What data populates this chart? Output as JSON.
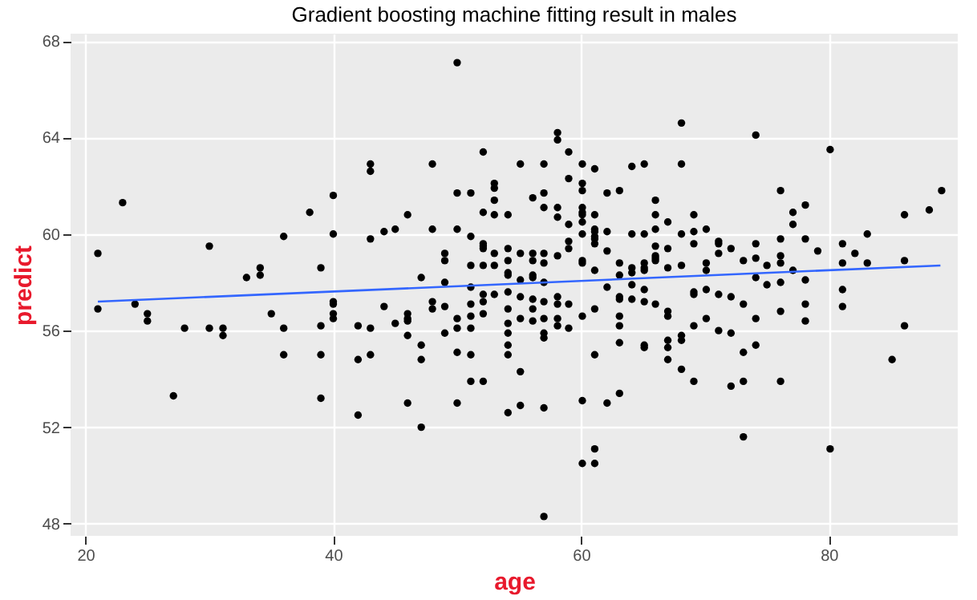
{
  "chart_data": {
    "type": "scatter",
    "title": "Gradient boosting machine fitting result in males",
    "xlabel": "age",
    "ylabel": "predict",
    "xlim": [
      18.8,
      90.4
    ],
    "ylim": [
      47.5,
      68.3
    ],
    "xticks": [
      20,
      40,
      60,
      80
    ],
    "yticks": [
      48,
      52,
      56,
      60,
      64,
      68
    ],
    "grid": true,
    "series": [
      {
        "marker": "circle",
        "color": "#000000",
        "x": [
          21,
          21,
          23,
          24,
          25,
          25,
          27.1,
          28,
          30,
          30,
          31.1,
          31.1,
          33,
          34.1,
          34.1,
          35,
          36,
          36,
          36,
          38.1,
          39,
          39,
          39,
          39,
          40,
          40,
          40,
          40,
          40,
          40,
          42,
          42,
          42,
          43,
          43,
          43,
          43,
          43,
          44.1,
          44.1,
          45,
          45,
          46,
          46,
          46,
          46,
          46,
          46,
          47.1,
          47.1,
          47.1,
          47.1,
          48,
          48,
          48,
          48,
          49,
          49,
          49,
          49,
          49,
          50,
          50,
          50,
          50,
          50,
          50,
          50,
          51.1,
          51.1,
          51.1,
          51.1,
          51.1,
          51.1,
          51.1,
          51.1,
          51.1,
          52.1,
          52.1,
          52.1,
          52.1,
          52.1,
          52.1,
          52.1,
          52.1,
          52.1,
          52.1,
          53,
          53,
          53,
          53,
          53,
          53,
          53,
          54.1,
          54.1,
          54.1,
          54.1,
          54.1,
          54.1,
          54.1,
          54.1,
          54.1,
          54.1,
          54.1,
          54.1,
          55.1,
          55.1,
          55.1,
          55.1,
          55.1,
          55.1,
          55.1,
          56.1,
          56.1,
          56.1,
          56.1,
          56.1,
          56.1,
          56.1,
          56.1,
          57,
          57,
          57,
          57,
          57,
          57,
          57,
          57,
          57,
          57,
          57,
          57,
          58.1,
          58.1,
          58.1,
          58.1,
          58.1,
          58.1,
          58.1,
          58.1,
          58.1,
          59,
          59,
          59,
          59,
          59,
          59,
          59,
          60.1,
          60.1,
          60.1,
          60.1,
          60.1,
          60.1,
          60.1,
          60.1,
          60.1,
          60.1,
          60.1,
          60.1,
          60.1,
          61.1,
          61.1,
          61.1,
          61.1,
          61.1,
          61.1,
          61.1,
          61.1,
          61.1,
          61.1,
          61.1,
          61.1,
          62.1,
          62.1,
          62.1,
          62.1,
          62.1,
          63.1,
          63.1,
          63.1,
          63.1,
          63.1,
          63.1,
          63.1,
          63.1,
          63.1,
          64.1,
          64.1,
          64.1,
          64.1,
          64.1,
          64.1,
          65.1,
          65.1,
          65.1,
          65.1,
          65.1,
          65.1,
          65.1,
          65.1,
          65.1,
          66,
          66,
          66,
          66,
          66,
          66,
          66,
          66,
          67,
          67,
          67,
          67,
          67,
          67,
          67,
          67,
          68.1,
          68.1,
          68.1,
          68.1,
          68.1,
          68.1,
          68.1,
          69.1,
          69.1,
          69.1,
          69.1,
          69.1,
          69.1,
          69.1,
          70.1,
          70.1,
          70.1,
          70.1,
          70.1,
          71.1,
          71.1,
          71.1,
          71.1,
          71.1,
          72.1,
          72.1,
          72.1,
          72.1,
          73.1,
          73.1,
          73.1,
          73.1,
          73.1,
          74.1,
          74.1,
          74.1,
          74.1,
          74.1,
          74.1,
          75,
          75,
          76.1,
          76.1,
          76.1,
          76.1,
          76.1,
          76.1,
          76.1,
          77.1,
          77.1,
          77.1,
          78.1,
          78.1,
          78.1,
          78.1,
          78.1,
          79.1,
          80.1,
          80.1,
          81.1,
          81.1,
          81.1,
          81.1,
          82.1,
          83.1,
          83.1,
          85.1,
          86.1,
          86.1,
          86.1,
          88.1,
          89.1
        ],
        "values": [
          59.2,
          56.9,
          61.3,
          57.1,
          56.7,
          56.4,
          53.3,
          56.1,
          59.5,
          56.1,
          56.1,
          55.8,
          58.2,
          58.6,
          58.3,
          56.7,
          59.9,
          56.1,
          55,
          60.9,
          58.6,
          56.2,
          55,
          53.2,
          61.6,
          60,
          57.2,
          57.1,
          56.7,
          56.5,
          56.2,
          54.8,
          52.5,
          62.9,
          62.6,
          59.8,
          56.1,
          55,
          60.1,
          57,
          60.2,
          56.3,
          60.8,
          56.7,
          56.5,
          56.4,
          55.8,
          53,
          58.2,
          55.4,
          54.8,
          52,
          62.9,
          60.2,
          57.2,
          56.9,
          59.2,
          58.9,
          58,
          57,
          55.9,
          67.1,
          61.7,
          60.2,
          56.5,
          56.1,
          55.1,
          53,
          61.7,
          59.9,
          58.7,
          57.8,
          57.1,
          56.6,
          56.1,
          55,
          53.9,
          63.4,
          60.9,
          59.6,
          59.5,
          59.4,
          58.7,
          57.5,
          57.2,
          56.7,
          53.9,
          62.1,
          61.9,
          61.4,
          60.8,
          59.2,
          58.7,
          57.5,
          60.8,
          59.4,
          58.9,
          58.4,
          58.3,
          57.6,
          56.9,
          56.3,
          55.9,
          55.4,
          55,
          52.6,
          62.9,
          59.2,
          58.1,
          57.4,
          56.5,
          54.3,
          52.9,
          61.5,
          59.2,
          58.9,
          58.3,
          58.2,
          57.3,
          56.9,
          56.4,
          62.9,
          61.7,
          61.1,
          59.2,
          58.8,
          58,
          57.2,
          56.5,
          55.9,
          55.7,
          52.8,
          48.3,
          64.2,
          63.9,
          61.1,
          60.7,
          59.1,
          57.4,
          57.1,
          56.5,
          56.2,
          63.4,
          62.3,
          60.4,
          59.7,
          59.4,
          57.1,
          56.1,
          62.9,
          62.1,
          61.8,
          61.1,
          60.9,
          60.8,
          60.5,
          60,
          58.9,
          58.8,
          56.6,
          53.1,
          50.5,
          62.7,
          60.8,
          60.2,
          60.1,
          59.9,
          59.8,
          59.6,
          58.5,
          56.9,
          55,
          51.1,
          50.5,
          61.7,
          60.1,
          59.3,
          57.8,
          53,
          61.8,
          58.8,
          58.3,
          57.4,
          57.3,
          56.6,
          56.2,
          55.5,
          53.4,
          62.8,
          60,
          58.6,
          58.4,
          57.9,
          57.3,
          62.9,
          60,
          58.8,
          58.6,
          58.5,
          57.7,
          57.2,
          55.4,
          55.3,
          61.4,
          60.8,
          60.2,
          59.5,
          59.1,
          59,
          58.9,
          57.1,
          60.5,
          59.4,
          58.6,
          56.8,
          56.6,
          55.6,
          55.3,
          54.8,
          64.6,
          62.9,
          60,
          58.7,
          55.8,
          55.6,
          54.4,
          60.8,
          60.1,
          59.6,
          57.6,
          57.5,
          56.2,
          53.9,
          60.2,
          58.8,
          58.5,
          57.7,
          56.5,
          59.7,
          59.6,
          59.2,
          57.5,
          56,
          59.4,
          57.4,
          55.9,
          53.7,
          58.9,
          57.1,
          55.1,
          53.9,
          51.6,
          64.1,
          59.6,
          59,
          58.2,
          56.5,
          55.4,
          58.7,
          57.9,
          61.8,
          59.8,
          59.1,
          58.8,
          58,
          56.8,
          53.9,
          60.9,
          60.4,
          58.5,
          61.2,
          59.8,
          58.1,
          57.1,
          56.4,
          59.3,
          63.5,
          51.1,
          59.6,
          58.8,
          57.7,
          57,
          59.2,
          60,
          58.8,
          54.8,
          60.8,
          58.9,
          56.2,
          61,
          61.8
        ]
      },
      {
        "type": "line",
        "color": "#3366ff",
        "x": [
          21,
          89
        ],
        "values": [
          57.2,
          58.7
        ]
      }
    ]
  }
}
